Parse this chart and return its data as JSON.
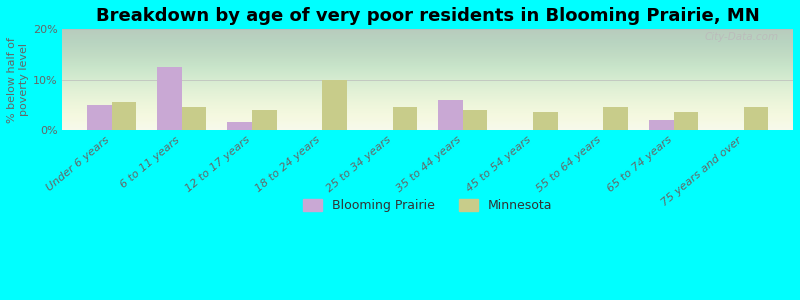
{
  "title": "Breakdown by age of very poor residents in Blooming Prairie, MN",
  "ylabel": "% below half of\npoverty level",
  "categories": [
    "Under 6 years",
    "6 to 11 years",
    "12 to 17 years",
    "18 to 24 years",
    "25 to 34 years",
    "35 to 44 years",
    "45 to 54 years",
    "55 to 64 years",
    "65 to 74 years",
    "75 years and over"
  ],
  "blooming_prairie": [
    5.0,
    12.5,
    1.5,
    0.0,
    0.0,
    6.0,
    0.0,
    0.0,
    2.0,
    0.0
  ],
  "minnesota": [
    5.5,
    4.5,
    4.0,
    10.0,
    4.5,
    4.0,
    3.5,
    4.5,
    3.5,
    4.5
  ],
  "ylim": [
    0,
    20
  ],
  "yticks": [
    0,
    10,
    20
  ],
  "ytick_labels": [
    "0%",
    "10%",
    "20%"
  ],
  "blooming_prairie_color": "#c9a8d4",
  "minnesota_color": "#c8cc8a",
  "background_color": "#00ffff",
  "bar_width": 0.35,
  "title_fontsize": 13,
  "axis_label_fontsize": 8,
  "tick_fontsize": 8,
  "legend_fontsize": 9,
  "watermark": "City-Data.com",
  "gradient_top_color": "#f5f8ee",
  "gradient_bottom_color": "#e2edd0"
}
